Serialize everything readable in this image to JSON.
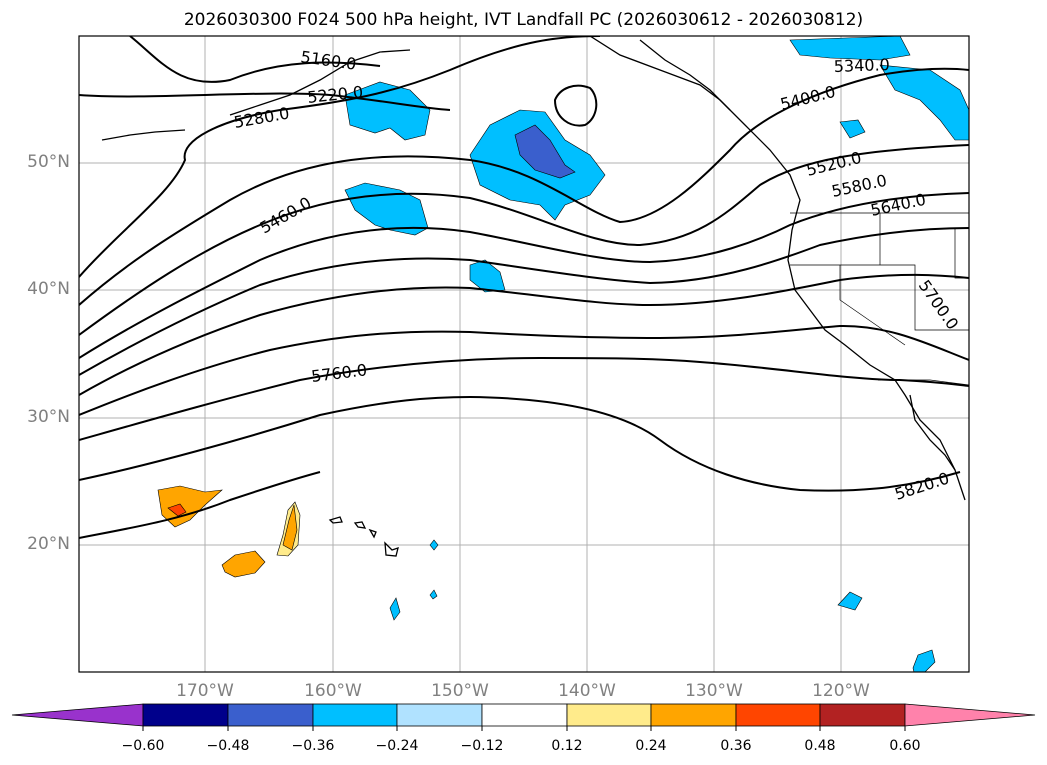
{
  "title": "2026030300 F024 500 hPa height, IVT Landfall PC (2026030612 - 2026030812)",
  "colors": {
    "deep_purple": "#9932cc",
    "navy": "#00008b",
    "royal_blue": "#3a5fcd",
    "deep_sky": "#00bfff",
    "light_sky": "#b0e2ff",
    "white": "#ffffff",
    "light_gold": "#ffeb8b",
    "orange": "#ffa500",
    "orange_red": "#ff4500",
    "firebrick": "#b22222",
    "pink": "#ff82ab"
  },
  "lat_labels": [
    "50°N",
    "40°N",
    "30°N",
    "20°N"
  ],
  "lon_labels": [
    "170°W",
    "160°W",
    "150°W",
    "140°W",
    "130°W",
    "120°W"
  ],
  "contour_labels": [
    "5160.0",
    "5220.0",
    "5280.0",
    "5340.0",
    "5400.0",
    "5460.0",
    "5520.0",
    "5580.0",
    "5640.0",
    "5700.0",
    "5760.0",
    "5820.0"
  ],
  "colorbar": {
    "ticks": [
      "−0.60",
      "−0.48",
      "−0.36",
      "−0.24",
      "−0.12",
      "0.12",
      "0.24",
      "0.36",
      "0.48",
      "0.60"
    ]
  }
}
